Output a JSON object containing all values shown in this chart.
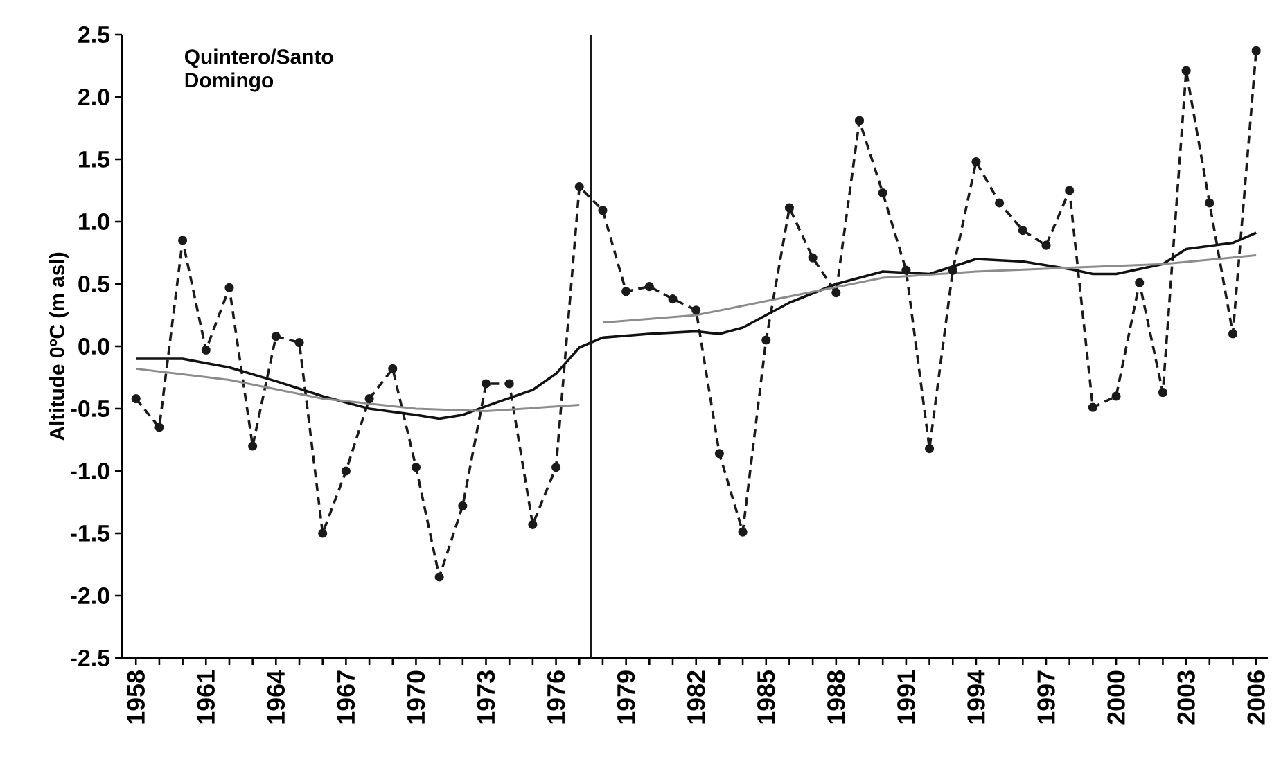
{
  "chart_data": {
    "type": "line",
    "title": "Quintero/Santo Domingo",
    "ylabel": "Altitude 0ºC (m asl)",
    "x": [
      1958,
      1959,
      1960,
      1961,
      1962,
      1963,
      1964,
      1965,
      1966,
      1967,
      1968,
      1969,
      1970,
      1971,
      1972,
      1973,
      1974,
      1975,
      1976,
      1977,
      1978,
      1979,
      1980,
      1981,
      1982,
      1983,
      1984,
      1985,
      1986,
      1987,
      1988,
      1989,
      1990,
      1991,
      1992,
      1993,
      1994,
      1995,
      1996,
      1997,
      1998,
      1999,
      2000,
      2001,
      2002,
      2003,
      2004,
      2005,
      2006
    ],
    "series": [
      {
        "color": "#1a1a1a",
        "line_style": "dashed",
        "marker": "circle",
        "values": [
          -0.42,
          -0.65,
          0.85,
          -0.03,
          0.47,
          -0.8,
          0.08,
          0.03,
          -1.5,
          -1.0,
          -0.42,
          -0.18,
          -0.97,
          -1.85,
          -1.28,
          -0.3,
          -0.3,
          -1.43,
          -0.97,
          1.28,
          1.09,
          0.44,
          0.48,
          0.38,
          0.29,
          -0.86,
          -1.49,
          0.05,
          1.11,
          0.71,
          0.43,
          1.81,
          1.23,
          0.61,
          -0.82,
          0.61,
          1.48,
          1.15,
          0.93,
          0.81,
          1.25,
          -0.49,
          -0.4,
          0.51,
          -0.37,
          2.21,
          1.15,
          0.1,
          2.37
        ]
      },
      {
        "color": "#111111",
        "line_style": "solid",
        "marker": "none",
        "x": [
          1958,
          1960,
          1962,
          1964,
          1966,
          1968,
          1970,
          1971,
          1972,
          1973,
          1975,
          1976,
          1977,
          1978,
          1980,
          1982,
          1983,
          1984,
          1986,
          1988,
          1990,
          1992,
          1994,
          1996,
          1998,
          1999,
          2000,
          2002,
          2003,
          2005,
          2006
        ],
        "values": [
          -0.1,
          -0.1,
          -0.17,
          -0.28,
          -0.4,
          -0.5,
          -0.55,
          -0.58,
          -0.55,
          -0.48,
          -0.35,
          -0.22,
          -0.01,
          0.07,
          0.1,
          0.12,
          0.1,
          0.15,
          0.35,
          0.5,
          0.6,
          0.58,
          0.7,
          0.68,
          0.62,
          0.58,
          0.58,
          0.66,
          0.78,
          0.83,
          0.91
        ]
      },
      {
        "color": "#8c8c8c",
        "line_style": "solid",
        "marker": "none",
        "x": [
          1958,
          1962,
          1966,
          1970,
          1973,
          1977,
          1977.5,
          1978,
          1982,
          1986,
          1990,
          1994,
          1998,
          2002,
          2006
        ],
        "values": [
          -0.18,
          -0.27,
          -0.42,
          -0.5,
          -0.52,
          -0.47,
          null,
          0.19,
          0.25,
          0.4,
          0.55,
          0.6,
          0.63,
          0.66,
          0.73
        ]
      }
    ],
    "ref_lines": [
      {
        "axis": "x",
        "value": 1977.5,
        "color": "#1a1a1a"
      }
    ],
    "xlim": [
      1957.4,
      2006.5
    ],
    "xticks": [
      1958,
      {
        "value": 1959,
        "label": null
      },
      {
        "value": 1960,
        "label": null
      },
      1961,
      {
        "value": 1962,
        "label": null
      },
      {
        "value": 1963,
        "label": null
      },
      1964,
      {
        "value": 1965,
        "label": null
      },
      {
        "value": 1966,
        "label": null
      },
      1967,
      {
        "value": 1968,
        "label": null
      },
      {
        "value": 1969,
        "label": null
      },
      1970,
      {
        "value": 1971,
        "label": null
      },
      {
        "value": 1972,
        "label": null
      },
      1973,
      {
        "value": 1974,
        "label": null
      },
      {
        "value": 1975,
        "label": null
      },
      1976,
      {
        "value": 1977,
        "label": null
      },
      {
        "value": 1978,
        "label": null
      },
      1979,
      {
        "value": 1980,
        "label": null
      },
      {
        "value": 1981,
        "label": null
      },
      1982,
      {
        "value": 1983,
        "label": null
      },
      {
        "value": 1984,
        "label": null
      },
      1985,
      {
        "value": 1986,
        "label": null
      },
      {
        "value": 1987,
        "label": null
      },
      1988,
      {
        "value": 1989,
        "label": null
      },
      {
        "value": 1990,
        "label": null
      },
      1991,
      {
        "value": 1992,
        "label": null
      },
      {
        "value": 1993,
        "label": null
      },
      1994,
      {
        "value": 1995,
        "label": null
      },
      {
        "value": 1996,
        "label": null
      },
      1997,
      {
        "value": 1998,
        "label": null
      },
      {
        "value": 1999,
        "label": null
      },
      2000,
      {
        "value": 2001,
        "label": null
      },
      {
        "value": 2002,
        "label": null
      },
      2003,
      {
        "value": 2004,
        "label": null
      },
      {
        "value": 2005,
        "label": null
      },
      2006
    ],
    "ylim": [
      -2.5,
      2.5
    ],
    "yticks": [
      {
        "value": -2.5,
        "label": "-2.5"
      },
      {
        "value": -2.0,
        "label": "-2.0"
      },
      {
        "value": -1.5,
        "label": "-1.5"
      },
      {
        "value": -1.0,
        "label": "-1.0"
      },
      {
        "value": -0.5,
        "label": "-0.5"
      },
      {
        "value": 0.0,
        "label": "0.0"
      },
      {
        "value": 0.5,
        "label": "0.5"
      },
      {
        "value": 1.0,
        "label": "1.0"
      },
      {
        "value": 1.5,
        "label": "1.5"
      },
      {
        "value": 2.0,
        "label": "2.0"
      },
      {
        "value": 2.5,
        "label": "2.5"
      }
    ],
    "grid": false
  }
}
